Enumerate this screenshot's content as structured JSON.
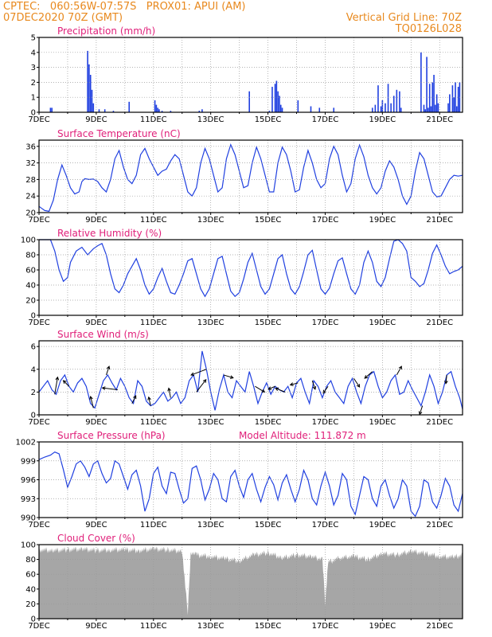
{
  "header": {
    "line1_left": "CPTEC:   060:56W-07:57S   PROX01: APUI (AM)",
    "line2_left": "07DEC2020 70Z (GMT)",
    "line2_right": "Vertical Grid Line: 70Z",
    "line3_right": "TQ0126L028"
  },
  "colors": {
    "header": "#e8891e",
    "title": "#e0207a",
    "series": "#2040e0",
    "cloud": "#a6a6a6"
  },
  "x_labels": [
    "7DEC",
    "9DEC",
    "11DEC",
    "13DEC",
    "15DEC",
    "17DEC",
    "19DEC",
    "21DEC"
  ],
  "chart_data": [
    {
      "id": "precip",
      "type": "bar",
      "title": "Precipitation (mm/h)",
      "ylim": [
        0,
        5
      ],
      "yticks": [
        0,
        1,
        2,
        3,
        4,
        5
      ],
      "x": [
        0.4,
        0.45,
        1.7,
        1.75,
        1.8,
        1.85,
        1.9,
        2.1,
        2.3,
        2.6,
        3.15,
        4.05,
        4.1,
        4.15,
        4.2,
        4.3,
        4.6,
        5.6,
        5.6,
        5.7,
        7.35,
        8.05,
        8.15,
        8.25,
        8.3,
        8.35,
        8.4,
        8.45,
        8.5,
        9.05,
        9.5,
        9.8,
        10.3,
        11.65,
        11.75,
        11.85,
        11.95,
        12.0,
        12.1,
        12.2,
        12.3,
        12.4,
        12.5,
        12.6,
        12.65,
        13.35,
        13.45,
        13.5,
        13.55,
        13.6,
        13.65,
        13.7,
        13.75,
        13.8,
        13.85,
        13.9,
        13.95,
        14.3,
        14.35,
        14.45,
        14.5,
        14.55,
        14.6,
        14.65,
        14.7
      ],
      "values": [
        0.3,
        0.3,
        4.1,
        3.2,
        2.5,
        1.5,
        0.6,
        0.2,
        0.2,
        0.1,
        0.7,
        0.8,
        0.5,
        0.3,
        0.2,
        0.1,
        0.1,
        0.1,
        0.1,
        0.2,
        1.4,
        0.1,
        1.7,
        1.9,
        2.1,
        1.4,
        1.1,
        0.5,
        0.3,
        0.8,
        0.4,
        0.3,
        0.3,
        0.3,
        0.5,
        1.8,
        0.4,
        0.8,
        0.6,
        1.9,
        0.6,
        1.1,
        1.5,
        1.4,
        0.3,
        4.0,
        0.5,
        0.2,
        3.7,
        0.3,
        1.9,
        0.4,
        2.0,
        2.5,
        0.5,
        1.2,
        0.6,
        0.6,
        1.2,
        1.8,
        1.0,
        2.0,
        0.4,
        1.7,
        2.0
      ]
    },
    {
      "id": "temp",
      "type": "line",
      "title": "Surface Temperature (nC)",
      "ylim": [
        20,
        37.5
      ],
      "yticks": [
        20,
        24,
        28,
        32,
        36
      ],
      "x": [
        0,
        0.1,
        0.2,
        0.35,
        0.5,
        0.65,
        0.8,
        0.95,
        1.1,
        1.25,
        1.4,
        1.5,
        1.6,
        1.75,
        1.9,
        2.05,
        2.2,
        2.35,
        2.5,
        2.65,
        2.8,
        2.95,
        3.1,
        3.25,
        3.4,
        3.55,
        3.7,
        3.85,
        4.0,
        4.15,
        4.3,
        4.45,
        4.6,
        4.75,
        4.9,
        5.05,
        5.2,
        5.35,
        5.5,
        5.65,
        5.8,
        5.95,
        6.1,
        6.25,
        6.4,
        6.55,
        6.7,
        6.85,
        7.0,
        7.15,
        7.3,
        7.45,
        7.6,
        7.75,
        7.9,
        8.05,
        8.2,
        8.35,
        8.5,
        8.65,
        8.8,
        8.95,
        9.1,
        9.25,
        9.4,
        9.55,
        9.7,
        9.85,
        10.0,
        10.15,
        10.3,
        10.45,
        10.6,
        10.75,
        10.9,
        11.05,
        11.2,
        11.35,
        11.5,
        11.65,
        11.8,
        11.95,
        12.1,
        12.25,
        12.4,
        12.55,
        12.7,
        12.85,
        13.0,
        13.15,
        13.3,
        13.45,
        13.6,
        13.75,
        13.9,
        14.05,
        14.2,
        14.35,
        14.5,
        14.65,
        14.8
      ],
      "values": [
        21.5,
        21,
        20.5,
        20.3,
        23,
        28,
        31.5,
        29,
        26,
        24.5,
        25,
        27.5,
        28.2,
        28,
        28.1,
        27.5,
        26,
        25,
        28,
        33,
        35,
        31,
        28,
        27,
        29,
        34,
        35.5,
        33,
        31,
        29,
        30,
        30.5,
        32.5,
        34,
        33,
        29,
        25,
        24,
        26,
        32,
        35.5,
        33,
        29,
        25,
        26,
        33,
        36.4,
        34,
        30,
        26,
        26.5,
        32,
        35.8,
        33,
        29,
        25,
        25,
        32,
        35.8,
        34,
        30,
        25,
        25.5,
        31,
        35,
        32,
        28,
        26,
        27,
        33,
        36,
        34,
        29,
        25,
        27,
        33,
        36.3,
        33.5,
        29,
        26,
        24.5,
        26,
        30,
        32.5,
        31,
        28,
        24,
        22,
        24,
        30,
        34.5,
        33,
        29,
        25,
        23.8,
        24,
        26,
        28,
        29,
        28.8,
        29
      ]
    },
    {
      "id": "rh",
      "type": "line",
      "title": "Relative Humidity (%)",
      "ylim": [
        0,
        100
      ],
      "yticks": [
        0,
        20,
        40,
        60,
        80,
        100
      ],
      "x": [
        0,
        0.2,
        0.4,
        0.55,
        0.7,
        0.85,
        1.0,
        1.1,
        1.3,
        1.5,
        1.7,
        1.9,
        2.05,
        2.2,
        2.35,
        2.5,
        2.65,
        2.8,
        2.95,
        3.1,
        3.25,
        3.4,
        3.55,
        3.7,
        3.85,
        4.0,
        4.15,
        4.3,
        4.45,
        4.6,
        4.75,
        4.9,
        5.05,
        5.2,
        5.35,
        5.5,
        5.65,
        5.8,
        5.95,
        6.1,
        6.25,
        6.4,
        6.55,
        6.7,
        6.85,
        7.0,
        7.15,
        7.3,
        7.45,
        7.6,
        7.75,
        7.9,
        8.05,
        8.2,
        8.35,
        8.5,
        8.65,
        8.8,
        8.95,
        9.1,
        9.25,
        9.4,
        9.55,
        9.7,
        9.85,
        10.0,
        10.15,
        10.3,
        10.45,
        10.6,
        10.75,
        10.9,
        11.05,
        11.2,
        11.35,
        11.5,
        11.65,
        11.8,
        11.95,
        12.1,
        12.25,
        12.4,
        12.55,
        12.7,
        12.85,
        13.0,
        13.15,
        13.3,
        13.45,
        13.6,
        13.75,
        13.9,
        14.05,
        14.2,
        14.35,
        14.5,
        14.65,
        14.8
      ],
      "values": [
        100,
        100,
        100,
        85,
        60,
        45,
        50,
        70,
        85,
        90,
        80,
        88,
        92,
        95,
        80,
        55,
        35,
        30,
        40,
        55,
        65,
        75,
        60,
        40,
        28,
        35,
        50,
        62,
        45,
        30,
        28,
        40,
        55,
        72,
        75,
        55,
        35,
        25,
        35,
        55,
        75,
        78,
        55,
        32,
        25,
        30,
        48,
        70,
        82,
        60,
        38,
        28,
        35,
        55,
        75,
        80,
        55,
        35,
        28,
        38,
        58,
        80,
        86,
        60,
        35,
        28,
        36,
        55,
        72,
        76,
        55,
        35,
        28,
        40,
        70,
        85,
        70,
        45,
        38,
        50,
        75,
        98,
        100,
        95,
        85,
        50,
        45,
        38,
        42,
        60,
        82,
        93,
        80,
        65,
        55,
        58,
        60,
        65
      ]
    },
    {
      "id": "wind",
      "type": "line",
      "title": "Surface Wind (m/s)",
      "ylim": [
        0,
        6.5
      ],
      "yticks": [
        0,
        2,
        4,
        6
      ],
      "x": [
        0,
        0.15,
        0.3,
        0.45,
        0.6,
        0.75,
        0.9,
        1.05,
        1.2,
        1.35,
        1.5,
        1.65,
        1.8,
        1.95,
        2.1,
        2.25,
        2.4,
        2.55,
        2.7,
        2.85,
        3.0,
        3.15,
        3.3,
        3.45,
        3.6,
        3.75,
        3.9,
        4.05,
        4.2,
        4.35,
        4.5,
        4.65,
        4.8,
        4.95,
        5.1,
        5.25,
        5.4,
        5.55,
        5.7,
        5.85,
        6.0,
        6.15,
        6.3,
        6.45,
        6.6,
        6.75,
        6.9,
        7.05,
        7.2,
        7.35,
        7.5,
        7.65,
        7.8,
        7.95,
        8.1,
        8.25,
        8.4,
        8.55,
        8.7,
        8.85,
        9.0,
        9.15,
        9.3,
        9.45,
        9.6,
        9.75,
        9.9,
        10.05,
        10.2,
        10.35,
        10.5,
        10.65,
        10.8,
        10.95,
        11.1,
        11.25,
        11.4,
        11.55,
        11.7,
        11.85,
        12.0,
        12.15,
        12.3,
        12.45,
        12.6,
        12.75,
        12.9,
        13.05,
        13.2,
        13.35,
        13.5,
        13.65,
        13.8,
        13.95,
        14.1,
        14.25,
        14.4,
        14.55,
        14.7,
        14.8
      ],
      "values": [
        2.0,
        2.5,
        3.0,
        2.2,
        1.8,
        3.0,
        3.5,
        2.5,
        2.0,
        2.8,
        3.2,
        2.5,
        1.0,
        0.6,
        1.8,
        3.0,
        3.5,
        2.8,
        2.2,
        3.2,
        2.5,
        1.5,
        1.0,
        3.0,
        2.5,
        1.2,
        0.8,
        1.0,
        1.5,
        2.0,
        1.2,
        1.5,
        2.0,
        1.0,
        1.5,
        3.0,
        3.5,
        2.0,
        5.6,
        4.0,
        2.0,
        0.4,
        2.2,
        3.5,
        2.0,
        1.5,
        3.0,
        2.5,
        2.0,
        3.8,
        2.5,
        1.0,
        2.0,
        2.8,
        1.8,
        2.5,
        2.2,
        2.0,
        2.5,
        1.5,
        2.8,
        3.2,
        2.0,
        1.0,
        3.0,
        2.5,
        1.5,
        2.5,
        3.0,
        2.0,
        1.5,
        1.0,
        2.5,
        3.2,
        2.0,
        1.0,
        2.5,
        3.5,
        3.8,
        2.5,
        1.5,
        2.0,
        3.0,
        3.5,
        1.8,
        2.0,
        3.0,
        2.2,
        1.5,
        0.8,
        2.0,
        3.5,
        2.5,
        1.0,
        2.0,
        3.5,
        3.8,
        2.5,
        1.5,
        0.5
      ],
      "arrows": [
        {
          "x": 0.55,
          "u": 0.3,
          "v": 1.8
        },
        {
          "x": 1.05,
          "u": -0.6,
          "v": 0.6
        },
        {
          "x": 1.9,
          "u": -0.3,
          "v": 1.2
        },
        {
          "x": 2.35,
          "u": 0.3,
          "v": 0.9
        },
        {
          "x": 2.75,
          "u": -1.6,
          "v": 0.2
        },
        {
          "x": 3.25,
          "u": 0.4,
          "v": 0.8
        },
        {
          "x": 3.9,
          "u": -0.2,
          "v": 0.9
        },
        {
          "x": 4.6,
          "u": -0.2,
          "v": 1.0
        },
        {
          "x": 5.5,
          "u": 1.0,
          "v": 1.3
        },
        {
          "x": 5.85,
          "u": -1.6,
          "v": -0.6
        },
        {
          "x": 6.45,
          "u": 1.0,
          "v": -0.3
        },
        {
          "x": 7.55,
          "u": 1.0,
          "v": -0.6
        },
        {
          "x": 8.25,
          "u": -0.7,
          "v": -0.3
        },
        {
          "x": 8.6,
          "u": -1.0,
          "v": 0.4
        },
        {
          "x": 9.05,
          "u": -0.8,
          "v": -0.2
        },
        {
          "x": 9.55,
          "u": 0.3,
          "v": -0.9
        },
        {
          "x": 10.1,
          "u": -0.5,
          "v": -0.7
        },
        {
          "x": 11.0,
          "u": 0.6,
          "v": -0.9
        },
        {
          "x": 11.65,
          "u": -0.8,
          "v": -0.7
        },
        {
          "x": 12.5,
          "u": 0.5,
          "v": 0.9
        },
        {
          "x": 13.4,
          "u": -0.3,
          "v": -0.9
        },
        {
          "x": 14.25,
          "u": -0.1,
          "v": -0.9
        }
      ]
    },
    {
      "id": "pressure",
      "type": "line",
      "title": "Surface Pressure (hPa)",
      "annotation": "Model Altitude: 111.872 m",
      "ylim": [
        990,
        1002
      ],
      "yticks": [
        990,
        993,
        996,
        999,
        1002
      ],
      "x": [
        0,
        0.2,
        0.4,
        0.55,
        0.7,
        0.85,
        1.0,
        1.15,
        1.3,
        1.45,
        1.6,
        1.75,
        1.9,
        2.05,
        2.2,
        2.35,
        2.5,
        2.65,
        2.8,
        2.95,
        3.1,
        3.25,
        3.4,
        3.55,
        3.7,
        3.85,
        4.0,
        4.15,
        4.3,
        4.45,
        4.6,
        4.75,
        4.9,
        5.05,
        5.2,
        5.35,
        5.5,
        5.65,
        5.8,
        5.95,
        6.1,
        6.25,
        6.4,
        6.55,
        6.7,
        6.85,
        7.0,
        7.15,
        7.3,
        7.45,
        7.6,
        7.75,
        7.9,
        8.05,
        8.2,
        8.35,
        8.5,
        8.65,
        8.8,
        8.95,
        9.1,
        9.25,
        9.4,
        9.55,
        9.7,
        9.85,
        10.0,
        10.15,
        10.3,
        10.45,
        10.6,
        10.75,
        10.9,
        11.05,
        11.2,
        11.35,
        11.5,
        11.65,
        11.8,
        11.95,
        12.1,
        12.25,
        12.4,
        12.55,
        12.7,
        12.85,
        13.0,
        13.15,
        13.3,
        13.45,
        13.6,
        13.75,
        13.9,
        14.05,
        14.2,
        14.35,
        14.5,
        14.65,
        14.8
      ],
      "values": [
        999.2,
        999.6,
        999.9,
        1000.4,
        1000.1,
        997.6,
        994.8,
        996.5,
        998.5,
        999.0,
        998.0,
        996.5,
        998.5,
        999.0,
        997.0,
        995.5,
        996.2,
        999.0,
        998.5,
        996.5,
        994.5,
        996.8,
        997.5,
        995.0,
        991.0,
        993.0,
        997.0,
        998.0,
        995.0,
        993.8,
        997.2,
        997.0,
        994.5,
        992.3,
        993.0,
        997.8,
        998.2,
        996.0,
        992.8,
        994.5,
        997.0,
        996.0,
        993.0,
        992.5,
        996.5,
        997.5,
        995.0,
        993.2,
        996.0,
        997.0,
        994.5,
        992.5,
        994.8,
        996.5,
        995.2,
        992.8,
        995.5,
        996.8,
        994.5,
        992.5,
        994.5,
        997.5,
        996.0,
        993.0,
        992.0,
        995.0,
        997.2,
        995.0,
        992.0,
        993.5,
        997.0,
        996.0,
        991.8,
        990.5,
        993.5,
        996.5,
        996.0,
        993.0,
        991.8,
        995.0,
        996.0,
        993.5,
        991.5,
        993.0,
        996.0,
        995.0,
        991.0,
        990.2,
        991.8,
        996.0,
        995.5,
        992.5,
        991.5,
        993.5,
        996.2,
        995.0,
        992.0,
        991.0,
        993.8
      ]
    },
    {
      "id": "cloud",
      "type": "area",
      "title": "Cloud Cover (%)",
      "ylim": [
        0,
        100
      ],
      "yticks": [
        0,
        20,
        40,
        60,
        80,
        100
      ],
      "x": [
        0,
        0.5,
        1.0,
        1.5,
        2.0,
        2.5,
        3.0,
        3.5,
        4.0,
        4.5,
        5.0,
        5.2,
        5.3,
        5.5,
        6.0,
        6.5,
        7.0,
        7.5,
        8.0,
        8.5,
        9.0,
        9.5,
        9.9,
        10.0,
        10.1,
        10.5,
        11.0,
        11.5,
        12.0,
        12.5,
        13.0,
        13.5,
        14.0,
        14.5,
        14.8
      ],
      "values": [
        97,
        96,
        97,
        98,
        96,
        97,
        97,
        96,
        98,
        97,
        95,
        10,
        93,
        90,
        88,
        85,
        82,
        90,
        93,
        86,
        90,
        88,
        84,
        25,
        80,
        86,
        88,
        84,
        92,
        90,
        95,
        92,
        88,
        87,
        90
      ]
    }
  ]
}
